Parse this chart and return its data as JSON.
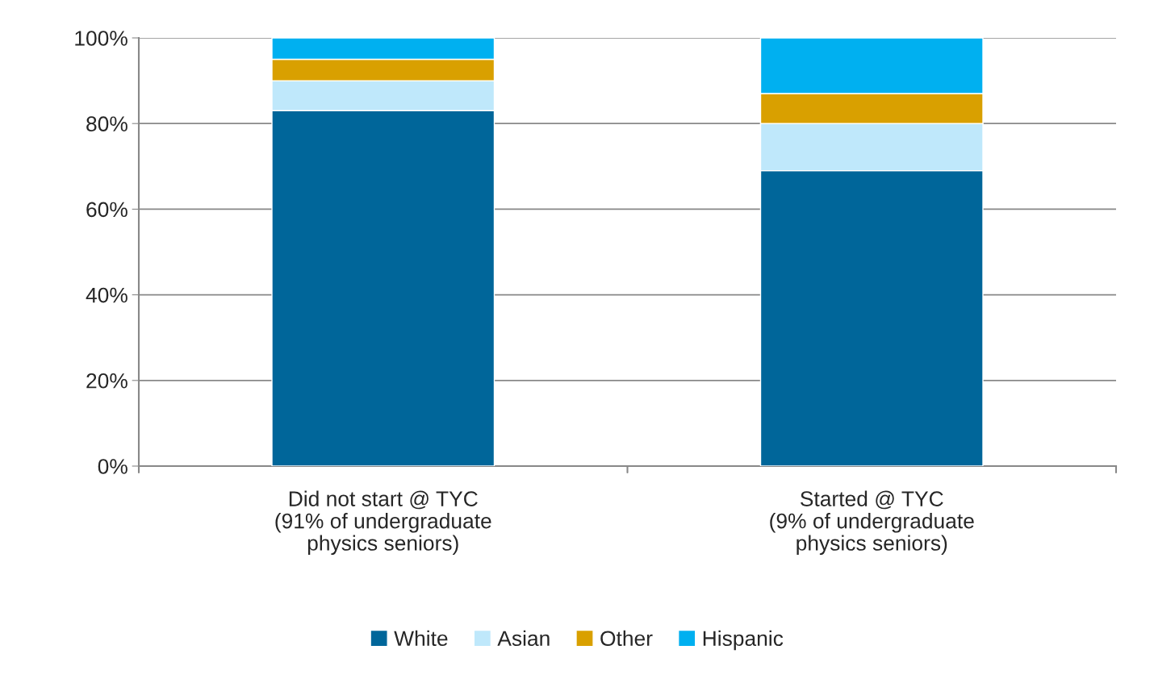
{
  "chart_data": {
    "type": "bar",
    "stacked": true,
    "categories": [
      "Did not start @ TYC\n(91% of undergraduate\nphysics seniors)",
      "Started @ TYC\n(9% of undergraduate\nphysics seniors)"
    ],
    "series": [
      {
        "name": "White",
        "color": "#00669a",
        "values": [
          83,
          69
        ]
      },
      {
        "name": "Asian",
        "color": "#bfe8fb",
        "values": [
          7,
          11
        ]
      },
      {
        "name": "Other",
        "color": "#d9a000",
        "values": [
          5,
          7
        ]
      },
      {
        "name": "Hispanic",
        "color": "#00b0f0",
        "values": [
          5,
          13
        ]
      }
    ],
    "ylim": [
      0,
      100
    ],
    "yticks": [
      {
        "value": 0,
        "label": "0%"
      },
      {
        "value": 20,
        "label": "20%"
      },
      {
        "value": 40,
        "label": "40%"
      },
      {
        "value": 60,
        "label": "60%"
      },
      {
        "value": 80,
        "label": "80%"
      },
      {
        "value": 100,
        "label": "100%"
      }
    ],
    "grid": "y",
    "legend": "bottom"
  }
}
